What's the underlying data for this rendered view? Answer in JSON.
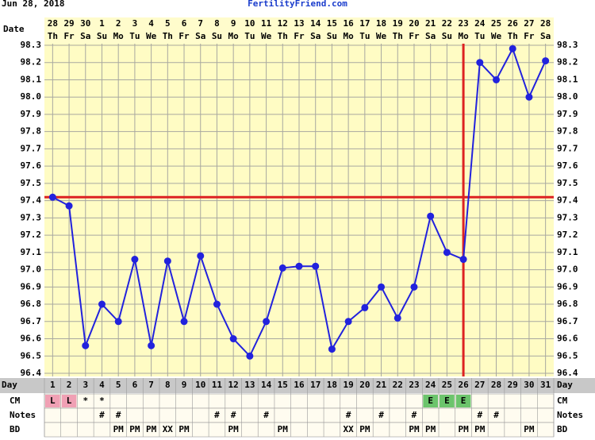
{
  "chart_data": {
    "type": "line",
    "chart_date": "Jun 28, 2018",
    "site": "FertilityFriend.com",
    "row_labels": {
      "date": "Date",
      "day": "Day",
      "cm": "CM",
      "notes": "Notes",
      "bd": "BD"
    },
    "dates": [
      28,
      29,
      30,
      1,
      2,
      3,
      4,
      5,
      6,
      7,
      8,
      9,
      10,
      11,
      12,
      13,
      14,
      15,
      16,
      17,
      18,
      19,
      20,
      21,
      22,
      23,
      24,
      25,
      26,
      27,
      28
    ],
    "weekdays": [
      "Th",
      "Fr",
      "Sa",
      "Su",
      "Mo",
      "Tu",
      "We",
      "Th",
      "Fr",
      "Sa",
      "Su",
      "Mo",
      "Tu",
      "We",
      "Th",
      "Fr",
      "Sa",
      "Su",
      "Mo",
      "Tu",
      "We",
      "Th",
      "Fr",
      "Sa",
      "Su",
      "Mo",
      "Tu",
      "We",
      "Th",
      "Fr",
      "Sa"
    ],
    "categories": [
      1,
      2,
      3,
      4,
      5,
      6,
      7,
      8,
      9,
      10,
      11,
      12,
      13,
      14,
      15,
      16,
      17,
      18,
      19,
      20,
      21,
      22,
      23,
      24,
      25,
      26,
      27,
      28,
      29,
      30,
      31
    ],
    "values": [
      97.42,
      97.37,
      96.56,
      96.8,
      96.7,
      97.06,
      96.56,
      97.05,
      96.7,
      97.08,
      96.8,
      96.6,
      96.5,
      96.7,
      97.01,
      97.02,
      97.02,
      96.54,
      96.7,
      96.78,
      96.9,
      96.72,
      96.9,
      97.31,
      97.1,
      97.06,
      98.2,
      98.1,
      98.28,
      98.0,
      98.21
    ],
    "color": "#2222dd",
    "cover_line": 97.42,
    "ovulation_day": 26,
    "marker_color": "#dd2222",
    "ylim": [
      96.4,
      98.3
    ],
    "yticks": [
      96.4,
      96.5,
      96.6,
      96.7,
      96.8,
      96.9,
      {
        "value": 97.0,
        "label": "97.0"
      },
      97.1,
      97.2,
      97.3,
      97.4,
      97.5,
      97.6,
      97.7,
      97.8,
      97.9,
      {
        "value": 98.0,
        "label": "98.0"
      },
      98.1,
      98.2,
      98.3
    ],
    "grid": true,
    "cm": [
      "L",
      "L",
      "*",
      "*",
      null,
      null,
      null,
      null,
      null,
      null,
      null,
      null,
      null,
      null,
      null,
      null,
      null,
      null,
      null,
      null,
      null,
      null,
      null,
      "E",
      "E",
      "E",
      null,
      null,
      null,
      null,
      null
    ],
    "cm_colors": {
      "L": "#f0a0b4",
      "E": "#6cc46c"
    },
    "notes": [
      null,
      null,
      null,
      "#",
      "#",
      null,
      null,
      null,
      null,
      null,
      "#",
      "#",
      null,
      "#",
      null,
      null,
      null,
      null,
      "#",
      null,
      "#",
      null,
      "#",
      null,
      null,
      null,
      "#",
      "#",
      null,
      null,
      null
    ],
    "bd": [
      null,
      null,
      null,
      null,
      "PM",
      "PM",
      "PM",
      "XX",
      "PM",
      null,
      null,
      "PM",
      null,
      null,
      "PM",
      null,
      null,
      null,
      "XX",
      "PM",
      null,
      null,
      "PM",
      "PM",
      null,
      "PM",
      "PM",
      null,
      null,
      "PM",
      null
    ]
  }
}
